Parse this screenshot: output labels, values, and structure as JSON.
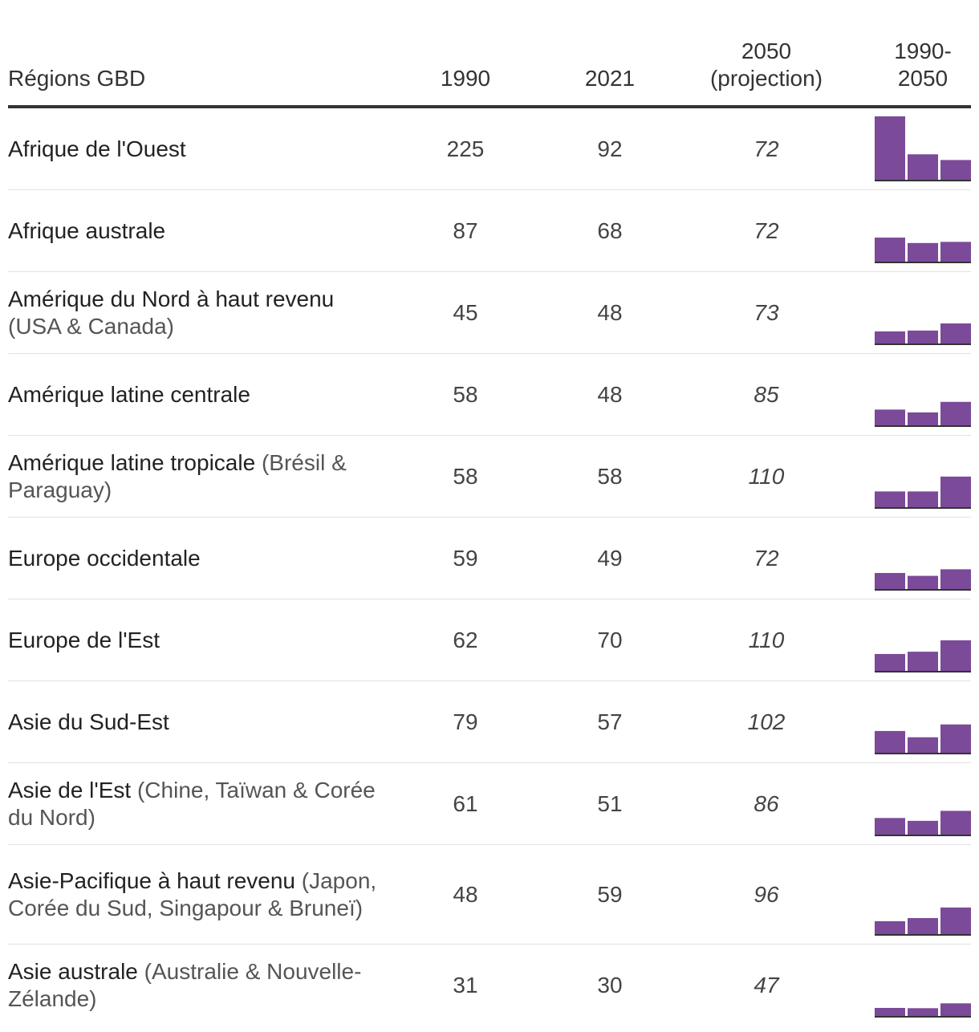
{
  "table": {
    "headers": {
      "region": "Régions GBD",
      "y1990": "1990",
      "y2021": "2021",
      "y2050_line1": "2050",
      "y2050_line2": "(projection)",
      "spark_line1": "1990-",
      "spark_line2": "2050"
    }
  },
  "colors": {
    "bar": "#7b4a99",
    "rule": "#333333"
  },
  "chart_data": {
    "type": "table",
    "title": "",
    "columns": [
      "Régions GBD",
      "1990",
      "2021",
      "2050 (projection)",
      "1990-2050"
    ],
    "rows": [
      {
        "region": "Afrique de l'Ouest",
        "sub": "",
        "v1990": 225,
        "v2021": 92,
        "v2050": 72
      },
      {
        "region": "Afrique australe",
        "sub": "",
        "v1990": 87,
        "v2021": 68,
        "v2050": 72
      },
      {
        "region": "Amérique du Nord à haut revenu",
        "sub": "(USA & Canada)",
        "v1990": 45,
        "v2021": 48,
        "v2050": 73
      },
      {
        "region": "Amérique latine centrale",
        "sub": "",
        "v1990": 58,
        "v2021": 48,
        "v2050": 85
      },
      {
        "region": "Amérique latine tropicale",
        "sub": "(Brésil & Paraguay)",
        "v1990": 58,
        "v2021": 58,
        "v2050": 110
      },
      {
        "region": "Europe occidentale",
        "sub": "",
        "v1990": 59,
        "v2021": 49,
        "v2050": 72
      },
      {
        "region": "Europe de l'Est",
        "sub": "",
        "v1990": 62,
        "v2021": 70,
        "v2050": 110
      },
      {
        "region": "Asie du Sud-Est",
        "sub": "",
        "v1990": 79,
        "v2021": 57,
        "v2050": 102
      },
      {
        "region": "Asie de l'Est",
        "sub": "(Chine, Taïwan & Corée du Nord)",
        "v1990": 61,
        "v2021": 51,
        "v2050": 86
      },
      {
        "region": "Asie-Pacifique à haut revenu",
        "sub": "(Japon, Corée du Sud, Singapour & Bruneï)",
        "v1990": 48,
        "v2021": 59,
        "v2050": 96
      },
      {
        "region": "Asie australe",
        "sub": "(Australie & Nouvelle-Zélande)",
        "v1990": 31,
        "v2021": 30,
        "v2050": 47
      }
    ],
    "sparkline_max": 225
  }
}
